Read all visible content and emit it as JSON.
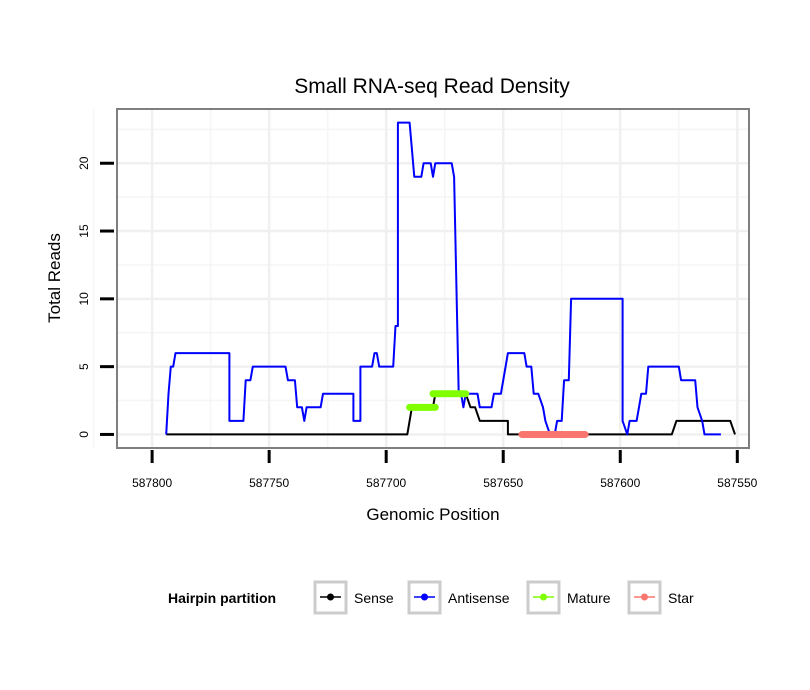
{
  "chart_data": {
    "type": "line",
    "title": "Small RNA-seq Read Density",
    "xlabel": "Genomic Position",
    "ylabel": "Total Reads",
    "xlim": [
      587815,
      587545
    ],
    "ylim": [
      -1,
      24
    ],
    "x_reversed": true,
    "grid": true,
    "x_ticks": [
      587800,
      587750,
      587700,
      587650,
      587600,
      587550
    ],
    "x_tick_labels": [
      "587800",
      "587750",
      "587700",
      "587650",
      "587600",
      "587550"
    ],
    "y_ticks": [
      0,
      5,
      10,
      15,
      20
    ],
    "y_tick_labels": [
      "0",
      "5",
      "10",
      "15",
      "20"
    ],
    "legend": {
      "title": "Hairpin partition",
      "placement": "bottom",
      "entries": [
        "Sense",
        "Antisense",
        "Mature",
        "Star"
      ]
    },
    "series": [
      {
        "name": "Sense",
        "color": "#000000",
        "width": "thin",
        "points": [
          [
            587794,
            0
          ],
          [
            587691,
            0
          ],
          [
            587689,
            2
          ],
          [
            587680,
            2
          ],
          [
            587679,
            3
          ],
          [
            587666,
            3
          ],
          [
            587664,
            2
          ],
          [
            587662,
            2
          ],
          [
            587660,
            1
          ],
          [
            587648,
            1
          ],
          [
            587648,
            0
          ],
          [
            587578,
            0
          ],
          [
            587576,
            1
          ],
          [
            587553,
            1
          ],
          [
            587551,
            0
          ]
        ]
      },
      {
        "name": "Antisense",
        "color": "#0000ff",
        "width": "thin",
        "points": [
          [
            587794,
            0
          ],
          [
            587793,
            3
          ],
          [
            587792,
            5
          ],
          [
            587791,
            5
          ],
          [
            587790,
            6
          ],
          [
            587767,
            6
          ],
          [
            587767,
            1
          ],
          [
            587761,
            1
          ],
          [
            587760,
            4
          ],
          [
            587758,
            4
          ],
          [
            587757,
            5
          ],
          [
            587743,
            5
          ],
          [
            587742,
            4
          ],
          [
            587739,
            4
          ],
          [
            587738,
            2
          ],
          [
            587736,
            2
          ],
          [
            587735,
            1
          ],
          [
            587734,
            2
          ],
          [
            587728,
            2
          ],
          [
            587727,
            3
          ],
          [
            587714,
            3
          ],
          [
            587714,
            1
          ],
          [
            587711,
            1
          ],
          [
            587711,
            5
          ],
          [
            587706,
            5
          ],
          [
            587705,
            6
          ],
          [
            587704,
            6
          ],
          [
            587703,
            5
          ],
          [
            587697,
            5
          ],
          [
            587696,
            8
          ],
          [
            587695,
            8
          ],
          [
            587695,
            23
          ],
          [
            587690,
            23
          ],
          [
            587688,
            19
          ],
          [
            587685,
            19
          ],
          [
            587684,
            20
          ],
          [
            587681,
            20
          ],
          [
            587680,
            19
          ],
          [
            587679,
            20
          ],
          [
            587672,
            20
          ],
          [
            587671,
            19
          ],
          [
            587669,
            3
          ],
          [
            587668,
            3
          ],
          [
            587667,
            2
          ],
          [
            587666,
            3
          ],
          [
            587661,
            3
          ],
          [
            587660,
            2
          ],
          [
            587655,
            2
          ],
          [
            587654,
            3
          ],
          [
            587651,
            3
          ],
          [
            587649,
            5
          ],
          [
            587648,
            6
          ],
          [
            587641,
            6
          ],
          [
            587640,
            5
          ],
          [
            587638,
            5
          ],
          [
            587637,
            3
          ],
          [
            587635,
            3
          ],
          [
            587633,
            2
          ],
          [
            587632,
            1
          ],
          [
            587630,
            0
          ],
          [
            587628,
            0
          ],
          [
            587627,
            1
          ],
          [
            587625,
            1
          ],
          [
            587624,
            4
          ],
          [
            587622,
            4
          ],
          [
            587621,
            10
          ],
          [
            587599,
            10
          ],
          [
            587599,
            1
          ],
          [
            587597,
            0
          ],
          [
            587596,
            1
          ],
          [
            587593,
            1
          ],
          [
            587592,
            2
          ],
          [
            587591,
            3
          ],
          [
            587589,
            3
          ],
          [
            587588,
            5
          ],
          [
            587575,
            5
          ],
          [
            587574,
            4
          ],
          [
            587568,
            4
          ],
          [
            587567,
            2
          ],
          [
            587565,
            1
          ],
          [
            587564,
            0
          ],
          [
            587557,
            0
          ]
        ]
      },
      {
        "name": "Mature",
        "color": "#7fff00",
        "width": "thick",
        "segments": [
          [
            [
              587690,
              2
            ],
            [
              587679,
              2
            ]
          ],
          [
            [
              587680,
              3
            ],
            [
              587666,
              3
            ]
          ]
        ]
      },
      {
        "name": "Star",
        "color": "#f8766d",
        "width": "thick",
        "segments": [
          [
            [
              587642,
              0
            ],
            [
              587615,
              0
            ]
          ]
        ]
      }
    ]
  }
}
